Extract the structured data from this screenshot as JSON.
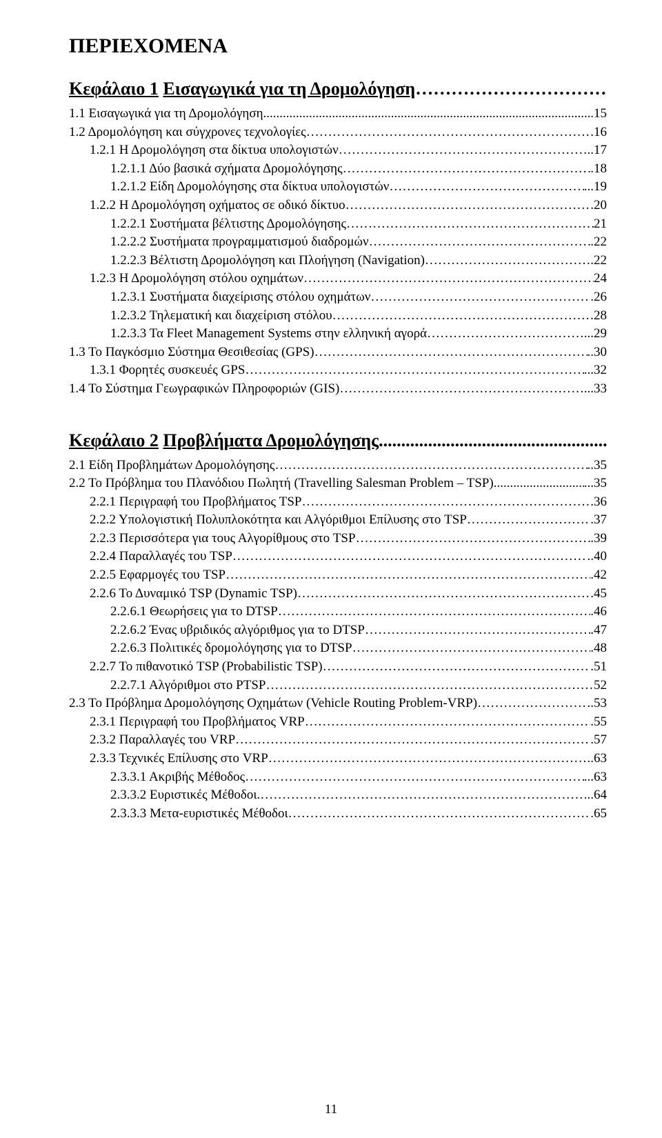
{
  "title": "ΠΕΡΙΕΧΟΜΕΝΑ",
  "pageNumber": "11",
  "leaderDot": "…",
  "leaderDotAlt": ".",
  "chapters": [
    {
      "heading": {
        "num": "Κεφάλαιο 1",
        "name": "Εισαγωγικά για τη Δρομολόγηση",
        "page": "15"
      },
      "entries": [
        {
          "indent": 0,
          "label": "1.1 Εισαγωγικά για τη Δρομολόγηση",
          "leader": "dot",
          "page": ".15"
        },
        {
          "indent": 0,
          "label": "1.2 Δρομολόγηση και σύγχρονες τεχνολογίες",
          "leader": "ell",
          "page": "16"
        },
        {
          "indent": 1,
          "label": "1.2.1 Η Δρομολόγηση στα δίκτυα υπολογιστών",
          "leader": "ell",
          "page": "..17"
        },
        {
          "indent": 2,
          "label": "1.2.1.1 Δύο βασικά σχήματα Δρομολόγησης",
          "leader": "ell",
          "page": ".18"
        },
        {
          "indent": 2,
          "label": "1.2.1.2 Είδη Δρομολόγησης στα δίκτυα υπολογιστών",
          "leader": "ell",
          "page": "...19"
        },
        {
          "indent": 1,
          "label": "1.2.2 Η Δρομολόγηση οχήματος σε οδικό δίκτυο",
          "leader": "ell",
          "page": ".20"
        },
        {
          "indent": 2,
          "label": "1.2.2.1 Συστήματα βέλτιστης Δρομολόγησης",
          "leader": "ell",
          "page": "21"
        },
        {
          "indent": 2,
          "label": "1.2.2.2 Συστήματα προγραμματισμού διαδρομών",
          "leader": "ell",
          "page": ".22"
        },
        {
          "indent": 2,
          "label": "1.2.2.3 Βέλτιστη Δρομολόγηση και Πλοήγηση (Navigation)",
          "leader": "ell",
          "page": ".22"
        },
        {
          "indent": 1,
          "label": "1.2.3 Η Δρομολόγηση στόλου οχημάτων",
          "leader": "ell",
          "page": "24"
        },
        {
          "indent": 2,
          "label": "1.2.3.1 Συστήματα διαχείρισης στόλου οχημάτων",
          "leader": "ell",
          "page": ".26"
        },
        {
          "indent": 2,
          "label": "1.2.3.2 Τηλεματική και διαχείριση στόλου",
          "leader": "ell",
          "page": "28"
        },
        {
          "indent": 2,
          "label": "1.2.3.3 Τα Fleet Management Systems στην ελληνική αγορά",
          "leader": "ell",
          "page": "...29"
        },
        {
          "indent": 0,
          "label": "1.3 Το Παγκόσμιο Σύστημα Θεσιθεσίας (GPS)",
          "leader": "ell",
          "page": "..30"
        },
        {
          "indent": 1,
          "label": "1.3.1 Φορητές συσκευές GPS",
          "leader": "ell",
          "page": "...32"
        },
        {
          "indent": 0,
          "label": "1.4 Το Σύστημα Γεωγραφικών Πληροφοριών (GIS)",
          "leader": "ell",
          "page": "...33"
        }
      ]
    },
    {
      "heading": {
        "num": "Κεφάλαιο 2",
        "name": "Προβλήματα Δρομολόγησης",
        "page": "..35",
        "leader": "."
      },
      "entries": [
        {
          "indent": 0,
          "label": "2.1 Είδη Προβλημάτων Δρομολόγησης",
          "leader": "ell",
          "page": "..35"
        },
        {
          "indent": 0,
          "label": "2.2 Το Πρόβλημα του Πλανόδιου Πωλητή (Travelling Salesman Problem – TSP)",
          "leader": "dot",
          "page": "...35"
        },
        {
          "indent": 1,
          "label": "2.2.1 Περιγραφή του Προβλήματος TSP",
          "leader": "ell",
          "page": ".36"
        },
        {
          "indent": 1,
          "label": "2.2.2 Υπολογιστική Πολυπλοκότητα και Αλγόριθμοι  Επίλυσης στο TSP",
          "leader": "ell",
          "page": ".37"
        },
        {
          "indent": 1,
          "label": "2.2.3 Περισσότερα για τους Αλγορίθμους στο TSP",
          "leader": "ell",
          "page": ".39"
        },
        {
          "indent": 1,
          "label": "2.2.4 Παραλλαγές του TSP",
          "leader": "ell",
          "page": "..40"
        },
        {
          "indent": 1,
          "label": "2.2.5 Εφαρμογές του TSP",
          "leader": "ell",
          "page": ".42"
        },
        {
          "indent": 1,
          "label": "2.2.6 Το Δυναμικό TSP (Dynamic TSP)",
          "leader": "ell",
          "page": ".45"
        },
        {
          "indent": 3,
          "label": "2.2.6.1 Θεωρήσεις για το DTSP",
          "leader": "ell",
          "page": ".46"
        },
        {
          "indent": 3,
          "label": "2.2.6.2 Ένας υβριδικός αλγόριθμος για το DTSP",
          "leader": "ell",
          "page": ".47"
        },
        {
          "indent": 3,
          "label": "2.2.6.3 Πολιτικές δρομολόγησης για το DTSP",
          "leader": "ell",
          "page": ".48"
        },
        {
          "indent": 1,
          "label": "2.2.7 Το πιθανοτικό TSP (Probabilistic TSP)",
          "leader": "ell",
          "page": ".51"
        },
        {
          "indent": 3,
          "label": "2.2.7.1 Αλγόριθμοι στο PTSP",
          "leader": "ell",
          "page": "52"
        },
        {
          "indent": 0,
          "label": "2.3 Το  Πρόβλημα Δρομολόγησης Οχημάτων (Vehicle Routing Problem-VRP)",
          "leader": "ell",
          "page": "..53"
        },
        {
          "indent": 1,
          "label": "2.3.1 Περιγραφή του Προβλήματος VRP",
          "leader": "ell",
          "page": ".55"
        },
        {
          "indent": 1,
          "label": "2.3.2 Παραλλαγές του VRP",
          "leader": "ell",
          "page": ".57"
        },
        {
          "indent": 1,
          "label": "2.3.3 Τεχνικές Επίλυσης στο VRP",
          "leader": "ell",
          "page": "..63"
        },
        {
          "indent": 4,
          "label": "2.3.3.1 Ακριβής Μέθοδος",
          "leader": "ell",
          "page": "...63"
        },
        {
          "indent": 4,
          "label": "2.3.3.2 Ευριστικές Μέθοδοι.",
          "leader": "ell",
          "page": "..64"
        },
        {
          "indent": 4,
          "label": "2.3.3.3 Μετα-ευριστικές Μέθοδοι",
          "leader": "ell",
          "page": ".65"
        }
      ]
    }
  ]
}
